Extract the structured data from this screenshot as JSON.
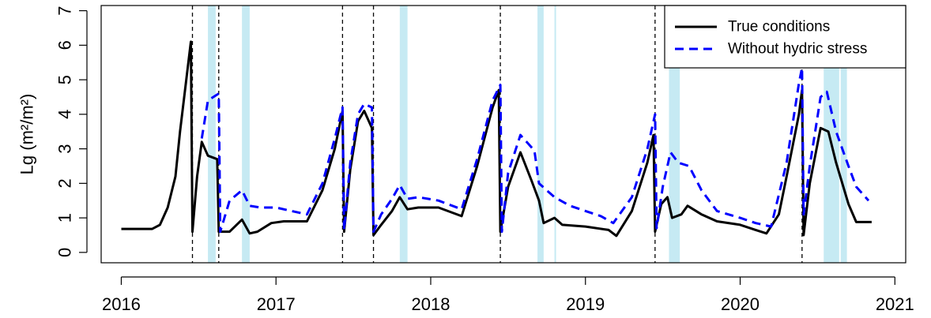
{
  "chart_data": {
    "type": "line",
    "title": "",
    "xlabel": "",
    "ylabel": "Lg  (m²/m²)",
    "xlim": [
      2015.87,
      2021.07
    ],
    "ylim": [
      -0.3,
      7.15
    ],
    "x_ticks": [
      2016,
      2017,
      2018,
      2019,
      2020,
      2021
    ],
    "x_tick_labels": [
      "2016",
      "2017",
      "2018",
      "2019",
      "2020",
      "2021"
    ],
    "y_ticks": [
      0,
      1,
      2,
      3,
      4,
      5,
      6,
      7
    ],
    "y_tick_labels": [
      "0",
      "1",
      "2",
      "3",
      "4",
      "5",
      "6",
      "7"
    ],
    "grid": false,
    "legend": {
      "position": "top-right",
      "entries": [
        {
          "label": "True conditions",
          "series": 0
        },
        {
          "label": "Without hydric stress",
          "series": 1
        }
      ]
    },
    "vlines": [
      2016.46,
      2016.63,
      2017.43,
      2017.63,
      2018.45,
      2019.45,
      2020.4
    ],
    "shaded_periods": [
      [
        2016.56,
        2016.61
      ],
      [
        2016.78,
        2016.83
      ],
      [
        2017.8,
        2017.85
      ],
      [
        2018.69,
        2018.73
      ],
      [
        2018.8,
        2018.81
      ],
      [
        2019.54,
        2019.61
      ],
      [
        2020.54,
        2020.64
      ],
      [
        2020.65,
        2020.69
      ]
    ],
    "series": [
      {
        "name": "True conditions",
        "color": "#000000",
        "style": "solid",
        "points": [
          [
            2016.0,
            0.68
          ],
          [
            2016.2,
            0.68
          ],
          [
            2016.25,
            0.8
          ],
          [
            2016.3,
            1.3
          ],
          [
            2016.35,
            2.2
          ],
          [
            2016.38,
            3.5
          ],
          [
            2016.42,
            5.0
          ],
          [
            2016.45,
            6.1
          ],
          [
            2016.46,
            0.6
          ],
          [
            2016.49,
            2.2
          ],
          [
            2016.52,
            3.2
          ],
          [
            2016.56,
            2.8
          ],
          [
            2016.62,
            2.7
          ],
          [
            2016.63,
            0.6
          ],
          [
            2016.7,
            0.6
          ],
          [
            2016.78,
            0.95
          ],
          [
            2016.83,
            0.55
          ],
          [
            2016.88,
            0.6
          ],
          [
            2016.97,
            0.85
          ],
          [
            2017.05,
            0.9
          ],
          [
            2017.2,
            0.9
          ],
          [
            2017.3,
            1.8
          ],
          [
            2017.38,
            3.0
          ],
          [
            2017.43,
            4.1
          ],
          [
            2017.44,
            0.6
          ],
          [
            2017.48,
            2.4
          ],
          [
            2017.53,
            3.8
          ],
          [
            2017.57,
            4.1
          ],
          [
            2017.62,
            3.6
          ],
          [
            2017.63,
            0.5
          ],
          [
            2017.68,
            0.8
          ],
          [
            2017.75,
            1.2
          ],
          [
            2017.8,
            1.6
          ],
          [
            2017.85,
            1.25
          ],
          [
            2017.92,
            1.3
          ],
          [
            2018.05,
            1.3
          ],
          [
            2018.2,
            1.05
          ],
          [
            2018.3,
            2.5
          ],
          [
            2018.4,
            4.2
          ],
          [
            2018.44,
            4.7
          ],
          [
            2018.45,
            0.6
          ],
          [
            2018.5,
            1.9
          ],
          [
            2018.58,
            2.9
          ],
          [
            2018.65,
            2.1
          ],
          [
            2018.7,
            1.5
          ],
          [
            2018.73,
            0.85
          ],
          [
            2018.8,
            1.0
          ],
          [
            2018.85,
            0.8
          ],
          [
            2019.0,
            0.75
          ],
          [
            2019.15,
            0.65
          ],
          [
            2019.2,
            0.48
          ],
          [
            2019.3,
            1.2
          ],
          [
            2019.4,
            2.6
          ],
          [
            2019.44,
            3.4
          ],
          [
            2019.45,
            0.6
          ],
          [
            2019.49,
            1.4
          ],
          [
            2019.53,
            1.6
          ],
          [
            2019.56,
            1.0
          ],
          [
            2019.62,
            1.1
          ],
          [
            2019.66,
            1.35
          ],
          [
            2019.75,
            1.1
          ],
          [
            2019.85,
            0.9
          ],
          [
            2020.0,
            0.8
          ],
          [
            2020.1,
            0.65
          ],
          [
            2020.17,
            0.55
          ],
          [
            2020.25,
            1.1
          ],
          [
            2020.3,
            2.2
          ],
          [
            2020.38,
            4.0
          ],
          [
            2020.4,
            4.7
          ],
          [
            2020.41,
            0.5
          ],
          [
            2020.45,
            2.0
          ],
          [
            2020.52,
            3.6
          ],
          [
            2020.57,
            3.5
          ],
          [
            2020.62,
            2.6
          ],
          [
            2020.7,
            1.4
          ],
          [
            2020.75,
            0.88
          ],
          [
            2020.85,
            0.88
          ]
        ]
      },
      {
        "name": "Without hydric stress",
        "color": "#0000ff",
        "style": "dashed",
        "points": [
          [
            2016.52,
            3.3
          ],
          [
            2016.56,
            4.4
          ],
          [
            2016.63,
            4.6
          ],
          [
            2016.64,
            0.6
          ],
          [
            2016.7,
            1.5
          ],
          [
            2016.78,
            1.8
          ],
          [
            2016.83,
            1.35
          ],
          [
            2016.9,
            1.3
          ],
          [
            2017.0,
            1.3
          ],
          [
            2017.1,
            1.2
          ],
          [
            2017.2,
            1.1
          ],
          [
            2017.3,
            2.0
          ],
          [
            2017.38,
            3.3
          ],
          [
            2017.43,
            4.2
          ],
          [
            2017.44,
            0.65
          ],
          [
            2017.48,
            2.6
          ],
          [
            2017.53,
            4.0
          ],
          [
            2017.57,
            4.3
          ],
          [
            2017.62,
            4.2
          ],
          [
            2017.63,
            0.6
          ],
          [
            2017.68,
            1.1
          ],
          [
            2017.75,
            1.55
          ],
          [
            2017.8,
            1.95
          ],
          [
            2017.85,
            1.55
          ],
          [
            2017.92,
            1.6
          ],
          [
            2018.05,
            1.5
          ],
          [
            2018.2,
            1.25
          ],
          [
            2018.3,
            2.7
          ],
          [
            2018.4,
            4.4
          ],
          [
            2018.45,
            4.85
          ],
          [
            2018.46,
            0.6
          ],
          [
            2018.5,
            2.3
          ],
          [
            2018.58,
            3.4
          ],
          [
            2018.67,
            2.95
          ],
          [
            2018.7,
            2.0
          ],
          [
            2018.8,
            1.6
          ],
          [
            2018.9,
            1.35
          ],
          [
            2019.0,
            1.2
          ],
          [
            2019.1,
            1.05
          ],
          [
            2019.18,
            0.85
          ],
          [
            2019.3,
            1.6
          ],
          [
            2019.4,
            3.0
          ],
          [
            2019.45,
            4.0
          ],
          [
            2019.46,
            0.7
          ],
          [
            2019.5,
            1.9
          ],
          [
            2019.55,
            2.9
          ],
          [
            2019.6,
            2.6
          ],
          [
            2019.67,
            2.5
          ],
          [
            2019.75,
            1.8
          ],
          [
            2019.85,
            1.2
          ],
          [
            2020.0,
            1.0
          ],
          [
            2020.1,
            0.85
          ],
          [
            2020.2,
            0.75
          ],
          [
            2020.3,
            2.6
          ],
          [
            2020.38,
            4.9
          ],
          [
            2020.4,
            5.35
          ],
          [
            2020.41,
            1.1
          ],
          [
            2020.45,
            2.5
          ],
          [
            2020.52,
            4.5
          ],
          [
            2020.56,
            4.65
          ],
          [
            2020.62,
            3.5
          ],
          [
            2020.7,
            2.5
          ],
          [
            2020.75,
            1.9
          ],
          [
            2020.83,
            1.5
          ]
        ]
      }
    ]
  }
}
